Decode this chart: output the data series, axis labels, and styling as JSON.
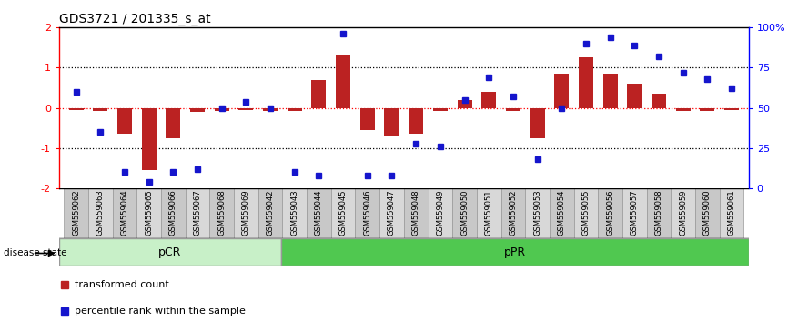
{
  "title": "GDS3721 / 201335_s_at",
  "samples": [
    "GSM559062",
    "GSM559063",
    "GSM559064",
    "GSM559065",
    "GSM559066",
    "GSM559067",
    "GSM559068",
    "GSM559069",
    "GSM559042",
    "GSM559043",
    "GSM559044",
    "GSM559045",
    "GSM559046",
    "GSM559047",
    "GSM559048",
    "GSM559049",
    "GSM559050",
    "GSM559051",
    "GSM559052",
    "GSM559053",
    "GSM559054",
    "GSM559055",
    "GSM559056",
    "GSM559057",
    "GSM559058",
    "GSM559059",
    "GSM559060",
    "GSM559061"
  ],
  "red_bars": [
    -0.05,
    -0.08,
    -0.65,
    -1.55,
    -0.75,
    -0.1,
    -0.07,
    -0.05,
    -0.07,
    -0.08,
    0.7,
    1.3,
    -0.55,
    -0.7,
    -0.65,
    -0.07,
    0.2,
    0.4,
    -0.07,
    -0.75,
    0.85,
    1.25,
    0.85,
    0.6,
    0.35,
    -0.07,
    -0.08,
    -0.05
  ],
  "blue_pct": [
    60,
    35,
    10,
    4,
    10,
    12,
    50,
    54,
    50,
    10,
    8,
    96,
    8,
    8,
    28,
    26,
    55,
    69,
    57,
    18,
    50,
    90,
    94,
    89,
    82,
    72,
    68,
    62
  ],
  "pcr_count": 9,
  "ppr_count": 19,
  "ylim": [
    -2,
    2
  ],
  "left_yticks": [
    -2,
    -1,
    0,
    1,
    2
  ],
  "right_yticks": [
    0,
    25,
    50,
    75,
    100
  ],
  "right_yticklabels": [
    "0",
    "25",
    "50",
    "75",
    "100%"
  ],
  "hline_dotted": [
    -1,
    1
  ],
  "hline_red_dotted": 0,
  "bar_color": "#BB2222",
  "dot_color": "#1515CC",
  "pcr_color": "#C8F0C8",
  "ppr_color": "#50C850",
  "pcr_border": "#999999",
  "ppr_border": "#999999",
  "disease_state_label": "disease state",
  "legend_red": "transformed count",
  "legend_blue": "percentile rank within the sample",
  "bg_color": "#FFFFFF",
  "spine_color": "#000000"
}
